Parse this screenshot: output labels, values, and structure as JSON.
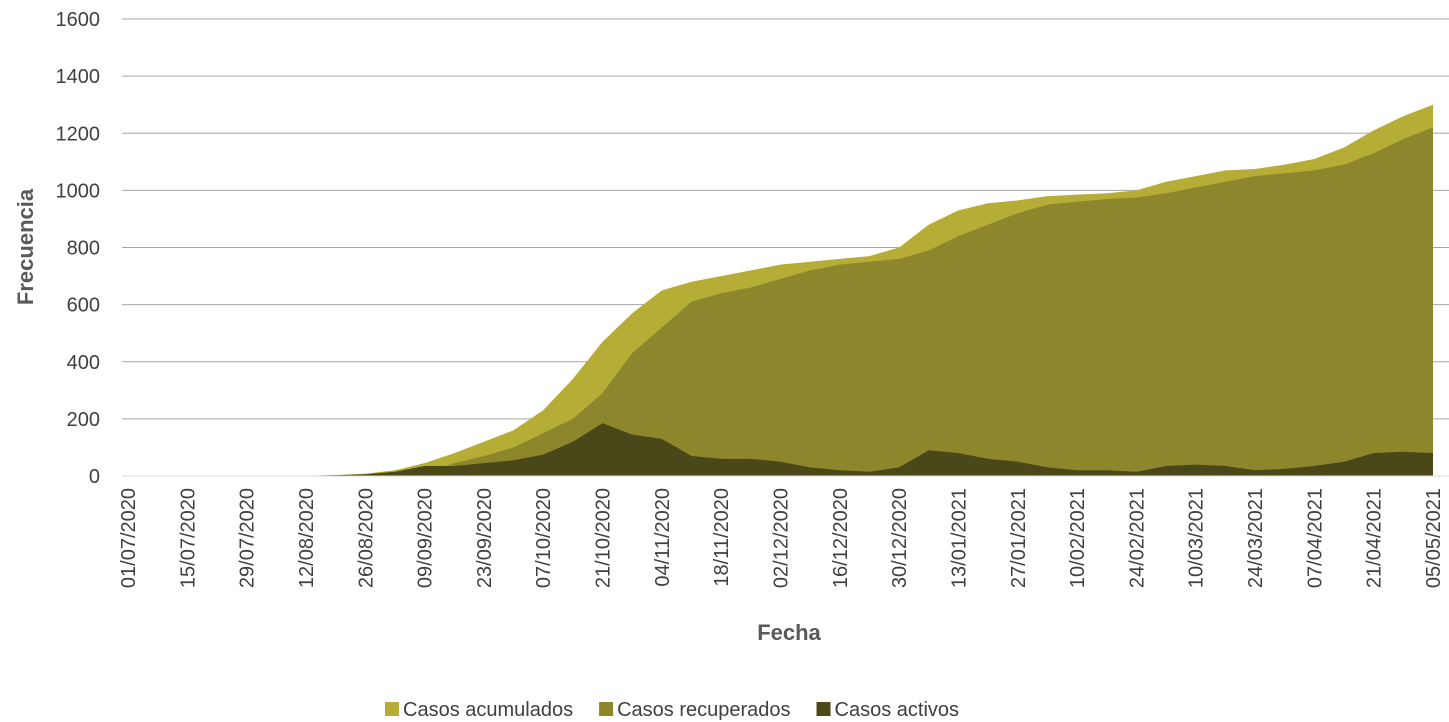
{
  "chart_data": {
    "type": "area",
    "x_label": "Fecha",
    "y_label": "Frecuencia",
    "categories": [
      "01/07/2020",
      null,
      "15/07/2020",
      null,
      "29/07/2020",
      null,
      "12/08/2020",
      null,
      "26/08/2020",
      null,
      "09/09/2020",
      null,
      "23/09/2020",
      null,
      "07/10/2020",
      null,
      "21/10/2020",
      null,
      "04/11/2020",
      null,
      "18/11/2020",
      null,
      "02/12/2020",
      null,
      "16/12/2020",
      null,
      "30/12/2020",
      null,
      "13/01/2021",
      null,
      "27/01/2021",
      null,
      "10/02/2021",
      null,
      "24/02/2021",
      null,
      "10/03/2021",
      null,
      "24/03/2021",
      null,
      "07/04/2021",
      null,
      "21/04/2021",
      null,
      "05/05/2021"
    ],
    "series": [
      {
        "name": "Casos acumulados",
        "color": "#b5ad35",
        "values": [
          0,
          0,
          0,
          0,
          0,
          0,
          1,
          3,
          8,
          20,
          45,
          80,
          120,
          160,
          230,
          340,
          470,
          570,
          650,
          680,
          700,
          720,
          740,
          750,
          760,
          770,
          800,
          880,
          930,
          955,
          965,
          980,
          985,
          990,
          1000,
          1030,
          1050,
          1070,
          1075,
          1090,
          1110,
          1150,
          1210,
          1260,
          1300
        ]
      },
      {
        "name": "Casos recuperados",
        "color": "#8e862d",
        "values": [
          0,
          0,
          0,
          0,
          0,
          0,
          0,
          0,
          2,
          5,
          10,
          45,
          70,
          100,
          150,
          200,
          290,
          430,
          520,
          610,
          640,
          660,
          690,
          720,
          740,
          750,
          760,
          790,
          840,
          880,
          920,
          950,
          960,
          970,
          975,
          990,
          1010,
          1030,
          1050,
          1060,
          1070,
          1090,
          1130,
          1180,
          1220
        ]
      },
      {
        "name": "Casos activos",
        "color": "#4a4719",
        "values": [
          0,
          0,
          0,
          0,
          0,
          0,
          1,
          3,
          6,
          15,
          35,
          35,
          45,
          55,
          75,
          120,
          185,
          145,
          130,
          70,
          60,
          60,
          50,
          30,
          20,
          15,
          30,
          90,
          80,
          60,
          50,
          30,
          20,
          20,
          15,
          35,
          40,
          35,
          20,
          25,
          35,
          50,
          80,
          85,
          80
        ]
      }
    ],
    "ylim": [
      0,
      1600
    ],
    "yticks": [
      0,
      200,
      400,
      600,
      800,
      1000,
      1200,
      1400,
      1600
    ],
    "grid": true
  }
}
